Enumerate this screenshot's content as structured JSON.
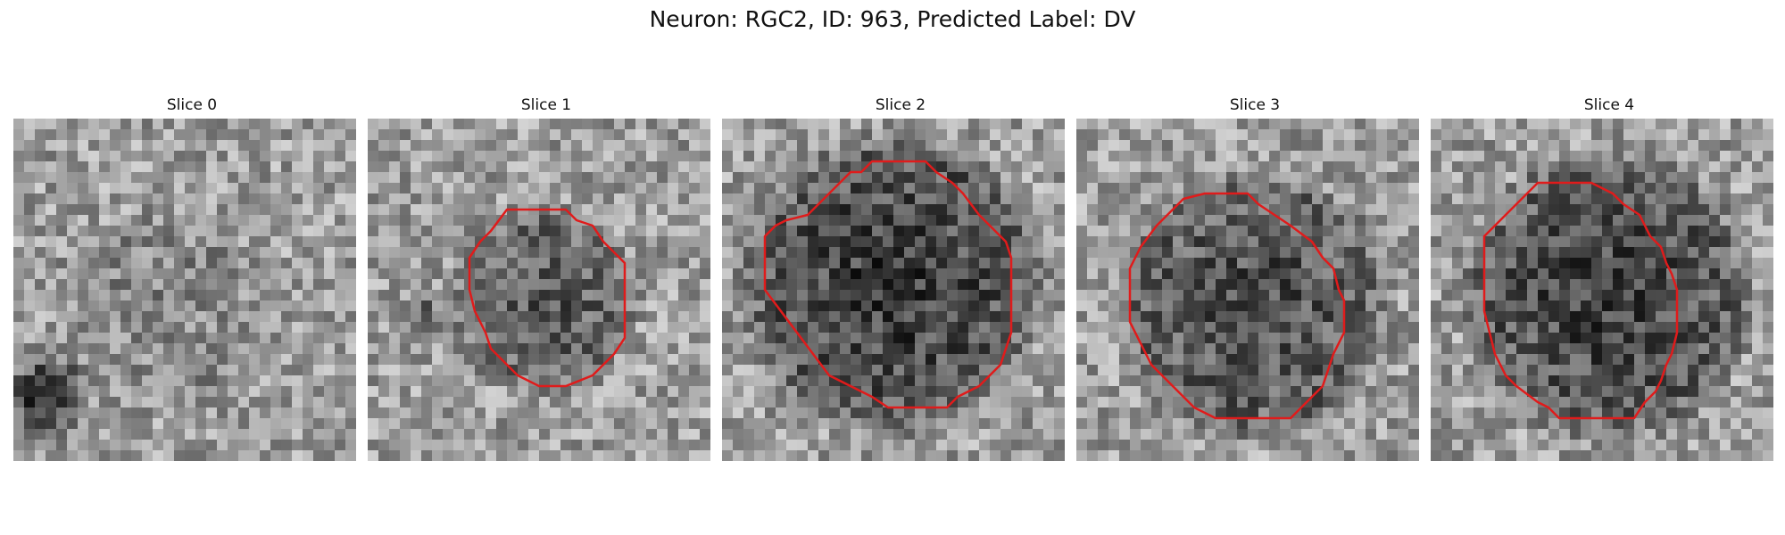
{
  "figure": {
    "title": "Neuron: RGC2, ID: 963, Predicted Label: DV"
  },
  "panels": [
    {
      "title": "Slice 0",
      "has_outline": false
    },
    {
      "title": "Slice 1",
      "has_outline": true
    },
    {
      "title": "Slice 2",
      "has_outline": true
    },
    {
      "title": "Slice 3",
      "has_outline": true
    },
    {
      "title": "Slice 4",
      "has_outline": true
    }
  ],
  "colors": {
    "outline": "#e01b1b",
    "background": "#ffffff"
  }
}
